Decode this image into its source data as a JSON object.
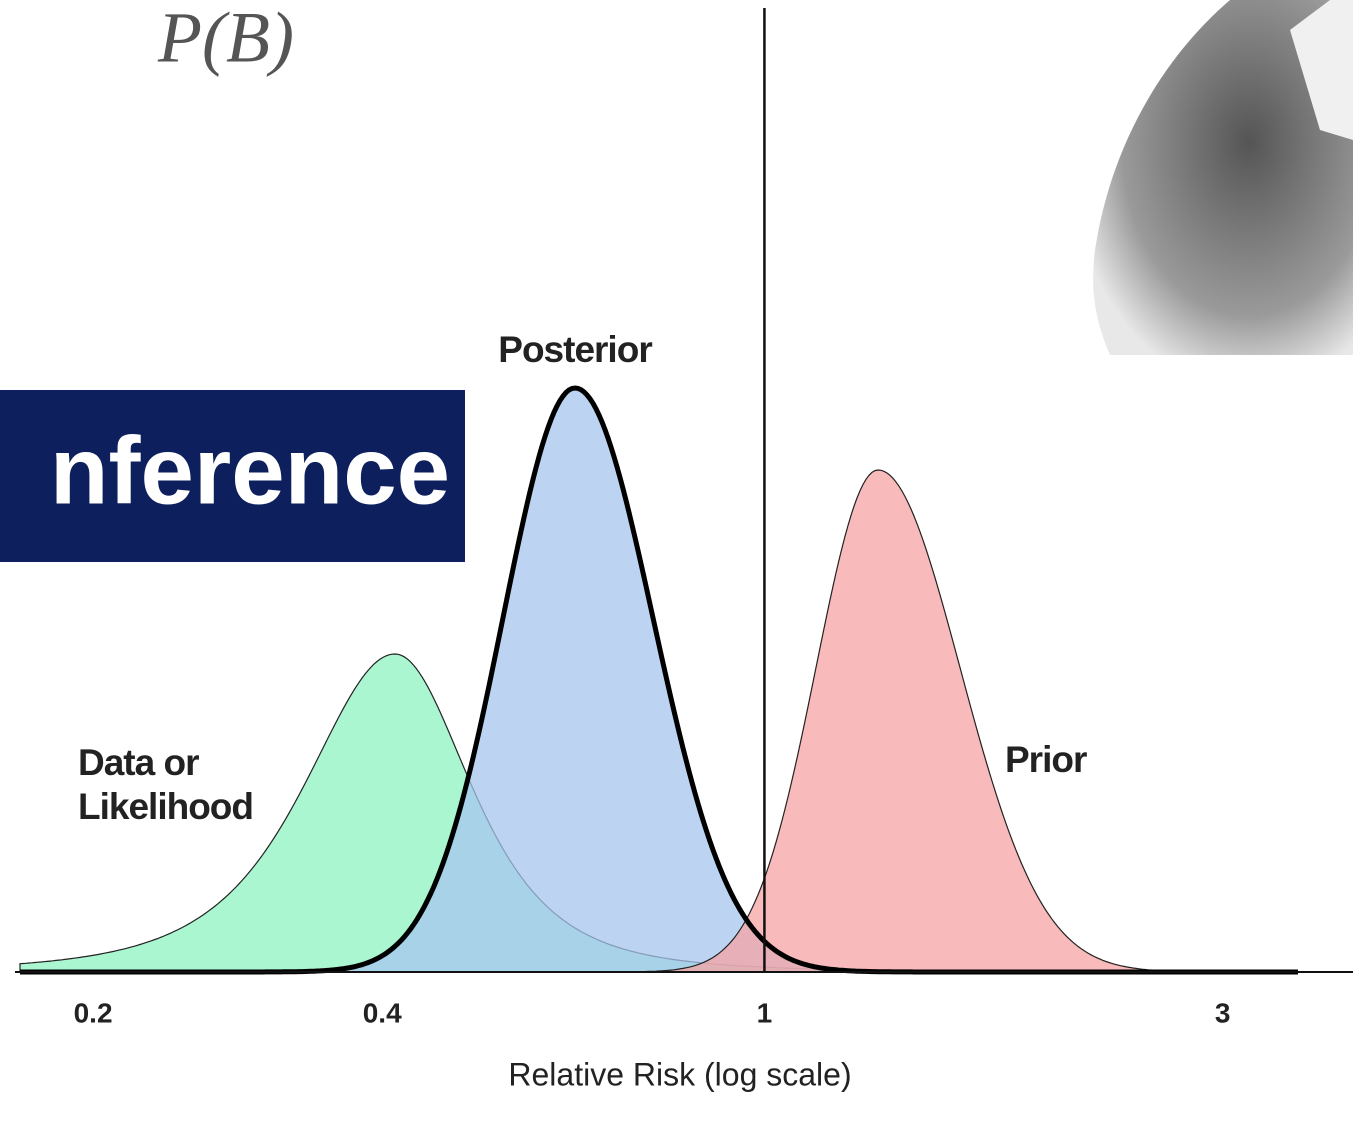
{
  "slide": {
    "formula": "P(B)",
    "banner": "nference"
  },
  "chart_data": {
    "type": "density",
    "xlabel": "Relative Risk (log scale)",
    "xscale": "log",
    "xlim": [
      0.16,
      4.1
    ],
    "xticks": [
      0.2,
      0.4,
      1,
      3
    ],
    "reference_line": 1,
    "series": [
      {
        "name": [
          "Data or",
          "Likelihood"
        ],
        "color": "#8ef3c2"
      },
      {
        "name": "Posterior",
        "color": "#a6c6ee"
      },
      {
        "name": "Prior",
        "color": "#f6a3a3"
      }
    ]
  }
}
